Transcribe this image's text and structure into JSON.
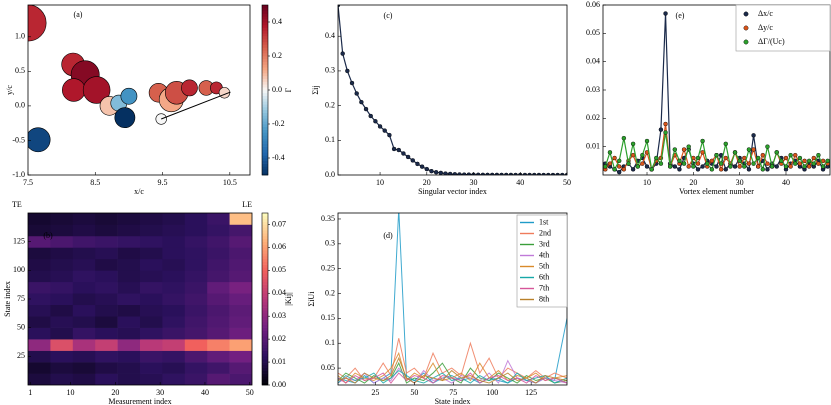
{
  "chart_data": [
    {
      "type": "bubble",
      "panel_label": "(a)",
      "xlabel": "x/c",
      "ylabel": "y/c",
      "xlim": [
        7.5,
        10.8
      ],
      "ylim": [
        -1.0,
        1.46
      ],
      "xticks": [
        7.5,
        8.5,
        9.5,
        10.5
      ],
      "yticks": [
        {
          "value": -1.0,
          "label": "-1.0"
        },
        -0.5,
        {
          "value": 0.0,
          "label": "0.0"
        },
        0.5,
        {
          "value": 1.0,
          "label": "1.0"
        }
      ],
      "x": [
        7.5,
        7.65,
        8.17,
        8.35,
        8.18,
        8.52,
        8.71,
        8.85,
        9.0,
        8.94,
        9.44,
        9.63,
        9.71,
        9.9,
        10.15,
        10.3,
        10.42,
        9.48
      ],
      "y": [
        1.2,
        -0.49,
        0.6,
        0.45,
        0.23,
        0.23,
        0.0,
        0.04,
        0.14,
        -0.17,
        0.19,
        0.09,
        0.19,
        0.26,
        0.26,
        0.26,
        0.19,
        -0.19
      ],
      "radius": [
        0.27,
        0.18,
        0.17,
        0.21,
        0.17,
        0.2,
        0.14,
        0.12,
        0.12,
        0.15,
        0.14,
        0.18,
        0.17,
        0.12,
        0.11,
        0.09,
        0.08,
        0.08
      ],
      "gamma": [
        0.35,
        -0.45,
        0.35,
        0.45,
        0.38,
        0.4,
        0.08,
        -0.15,
        -0.25,
        -0.5,
        0.25,
        0.12,
        0.28,
        0.35,
        0.25,
        0.35,
        0.05,
        0.0
      ],
      "segment": {
        "x": [
          9.48,
          10.51
        ],
        "y": [
          -0.19,
          0.2
        ]
      },
      "colorbar": {
        "label": "Γ",
        "colormap": "RdBu_r",
        "lim": [
          -0.5,
          0.5
        ],
        "ticks": [
          -0.4,
          -0.2,
          {
            "value": 0.0,
            "label": "0.0"
          },
          0.2,
          0.4
        ]
      }
    },
    {
      "type": "heatmap",
      "panel_label": "(b)",
      "xlabel": "Measurement index",
      "ylabel": "State index",
      "annotations": [
        "TE",
        "LE"
      ],
      "xlim": [
        0.5,
        50.5
      ],
      "ylim": [
        0,
        150
      ],
      "xticks": [
        1,
        10,
        20,
        30,
        40,
        50
      ],
      "yticks": [
        25,
        50,
        75,
        100,
        125
      ],
      "values": [
        [
          0.008,
          0.01,
          0.009,
          0.012,
          0.01,
          0.011,
          0.013,
          0.015,
          0.02,
          0.018
        ],
        [
          0.006,
          0.008,
          0.007,
          0.009,
          0.01,
          0.012,
          0.011,
          0.014,
          0.016,
          0.02
        ],
        [
          0.01,
          0.012,
          0.011,
          0.013,
          0.012,
          0.015,
          0.014,
          0.018,
          0.022,
          0.025
        ],
        [
          0.03,
          0.045,
          0.035,
          0.04,
          0.03,
          0.038,
          0.04,
          0.05,
          0.055,
          0.06
        ],
        [
          0.012,
          0.01,
          0.014,
          0.012,
          0.011,
          0.013,
          0.015,
          0.017,
          0.02,
          0.024
        ],
        [
          0.009,
          0.011,
          0.01,
          0.008,
          0.012,
          0.01,
          0.013,
          0.016,
          0.019,
          0.022
        ],
        [
          0.011,
          0.009,
          0.012,
          0.01,
          0.009,
          0.011,
          0.012,
          0.015,
          0.018,
          0.021
        ],
        [
          0.013,
          0.012,
          0.01,
          0.011,
          0.013,
          0.012,
          0.014,
          0.016,
          0.02,
          0.023
        ],
        [
          0.015,
          0.014,
          0.012,
          0.013,
          0.011,
          0.014,
          0.013,
          0.015,
          0.022,
          0.026
        ],
        [
          0.01,
          0.011,
          0.013,
          0.012,
          0.01,
          0.011,
          0.012,
          0.014,
          0.017,
          0.02
        ],
        [
          0.009,
          0.01,
          0.011,
          0.009,
          0.01,
          0.012,
          0.011,
          0.013,
          0.016,
          0.019
        ],
        [
          0.008,
          0.009,
          0.01,
          0.011,
          0.009,
          0.01,
          0.012,
          0.013,
          0.015,
          0.018
        ],
        [
          0.02,
          0.018,
          0.016,
          0.015,
          0.014,
          0.013,
          0.012,
          0.014,
          0.016,
          0.02
        ],
        [
          0.007,
          0.008,
          0.009,
          0.008,
          0.009,
          0.01,
          0.011,
          0.012,
          0.014,
          0.017
        ],
        [
          0.006,
          0.007,
          0.008,
          0.007,
          0.008,
          0.009,
          0.01,
          0.012,
          0.015,
          0.065
        ]
      ],
      "colorbar": {
        "label": "|Kij|",
        "colormap": "magma",
        "lim": [
          0,
          0.075
        ],
        "ticks": [
          {
            "value": 0,
            "label": "0.00"
          },
          0.01,
          0.02,
          0.03,
          0.04,
          0.05,
          0.06,
          0.07
        ]
      }
    },
    {
      "type": "line",
      "panel_label": "(c)",
      "xlabel": "Singular vector index",
      "ylabel": "Σij",
      "markers": true,
      "xlim": [
        1,
        50
      ],
      "ylim": [
        0,
        0.49
      ],
      "xticks": [
        10,
        20,
        30,
        40,
        50
      ],
      "yticks": [
        {
          "value": 0,
          "label": "0.0"
        },
        0.1,
        0.2,
        0.3,
        0.4
      ],
      "x": [
        1,
        2,
        3,
        4,
        5,
        6,
        7,
        8,
        9,
        10,
        11,
        12,
        13,
        14,
        15,
        16,
        17,
        18,
        19,
        20,
        21,
        22,
        23,
        24,
        25,
        26,
        27,
        28,
        29,
        30,
        31,
        32,
        33,
        34,
        35,
        36,
        37,
        38,
        39,
        40,
        41,
        42,
        43,
        44,
        45,
        46,
        47,
        48,
        49,
        50
      ],
      "series": [
        {
          "color": "#1b2a4a",
          "values": [
            0.49,
            0.35,
            0.3,
            0.265,
            0.235,
            0.21,
            0.19,
            0.17,
            0.155,
            0.14,
            0.128,
            0.115,
            0.075,
            0.072,
            0.062,
            0.052,
            0.042,
            0.032,
            0.024,
            0.017,
            0.011,
            0.008,
            0.006,
            0.004,
            0.003,
            0.002,
            0.0015,
            0.001,
            0.001,
            0.0008,
            0.0006,
            0.0005,
            0.0004,
            0.0003,
            0.0003,
            0.0002,
            0.0002,
            0.0002,
            0.0001,
            0.0001,
            0.0001,
            0.0001,
            0.0001,
            0.0001,
            0,
            0,
            0,
            0,
            0,
            0
          ]
        }
      ]
    },
    {
      "type": "line",
      "panel_label": "(d)",
      "xlabel": "State index",
      "ylabel": "ΣiUi",
      "markers": false,
      "legend": "upper right",
      "xlim": [
        1,
        148
      ],
      "ylim": [
        0.016,
        0.362
      ],
      "xticks": [
        25,
        50,
        75,
        100,
        125
      ],
      "yticks": [
        0.05,
        0.1,
        0.15,
        0.2,
        0.25,
        0.3,
        0.35
      ],
      "x": [
        1,
        6,
        12,
        18,
        24,
        30,
        35,
        40,
        45,
        50,
        56,
        62,
        68,
        74,
        80,
        86,
        92,
        98,
        104,
        110,
        116,
        122,
        128,
        134,
        140,
        148
      ],
      "series": [
        {
          "name": "1st",
          "color": "#1f9bc8",
          "values": [
            0.03,
            0.025,
            0.02,
            0.035,
            0.02,
            0.03,
            0.04,
            0.37,
            0.03,
            0.025,
            0.04,
            0.02,
            0.03,
            0.035,
            0.025,
            0.03,
            0.02,
            0.03,
            0.025,
            0.02,
            0.03,
            0.025,
            0.02,
            0.03,
            0.025,
            0.15
          ]
        },
        {
          "name": "2nd",
          "color": "#ef7b5c",
          "values": [
            0.04,
            0.03,
            0.05,
            0.025,
            0.03,
            0.06,
            0.035,
            0.11,
            0.04,
            0.05,
            0.03,
            0.08,
            0.04,
            0.05,
            0.035,
            0.1,
            0.04,
            0.07,
            0.03,
            0.05,
            0.04,
            0.03,
            0.045,
            0.03,
            0.04,
            0.03
          ]
        },
        {
          "name": "3rd",
          "color": "#3a9e3a",
          "values": [
            0.025,
            0.04,
            0.03,
            0.02,
            0.035,
            0.025,
            0.03,
            0.06,
            0.02,
            0.03,
            0.025,
            0.04,
            0.06,
            0.03,
            0.02,
            0.05,
            0.03,
            0.025,
            0.04,
            0.03,
            0.02,
            0.035,
            0.025,
            0.03,
            0.02,
            0.025
          ]
        },
        {
          "name": "4th",
          "color": "#c07ad8",
          "values": [
            0.02,
            0.03,
            0.025,
            0.04,
            0.02,
            0.03,
            0.025,
            0.05,
            0.03,
            0.02,
            0.045,
            0.025,
            0.03,
            0.02,
            0.035,
            0.03,
            0.025,
            0.04,
            0.02,
            0.065,
            0.03,
            0.025,
            0.02,
            0.03,
            0.025,
            0.02
          ]
        },
        {
          "name": "5th",
          "color": "#d98a2b",
          "values": [
            0.035,
            0.02,
            0.04,
            0.03,
            0.025,
            0.035,
            0.05,
            0.08,
            0.025,
            0.04,
            0.03,
            0.06,
            0.025,
            0.03,
            0.04,
            0.025,
            0.06,
            0.03,
            0.045,
            0.025,
            0.035,
            0.03,
            0.04,
            0.025,
            0.03,
            0.035
          ]
        },
        {
          "name": "6th",
          "color": "#17a8a8",
          "values": [
            0.02,
            0.035,
            0.025,
            0.03,
            0.04,
            0.02,
            0.03,
            0.045,
            0.035,
            0.025,
            0.02,
            0.03,
            0.04,
            0.025,
            0.03,
            0.02,
            0.035,
            0.025,
            0.03,
            0.02,
            0.04,
            0.025,
            0.03,
            0.035,
            0.02,
            0.03
          ]
        },
        {
          "name": "7th",
          "color": "#d6559a",
          "values": [
            0.03,
            0.02,
            0.035,
            0.025,
            0.03,
            0.04,
            0.02,
            0.04,
            0.025,
            0.035,
            0.03,
            0.02,
            0.035,
            0.03,
            0.025,
            0.04,
            0.02,
            0.03,
            0.035,
            0.025,
            0.03,
            0.02,
            0.035,
            0.025,
            0.03,
            0.02
          ]
        },
        {
          "name": "8th",
          "color": "#b9802a",
          "values": [
            0.025,
            0.03,
            0.02,
            0.04,
            0.03,
            0.025,
            0.035,
            0.07,
            0.03,
            0.02,
            0.035,
            0.03,
            0.025,
            0.045,
            0.03,
            0.035,
            0.025,
            0.02,
            0.03,
            0.04,
            0.025,
            0.03,
            0.02,
            0.035,
            0.03,
            0.025
          ]
        }
      ]
    },
    {
      "type": "line",
      "panel_label": "(e)",
      "xlabel": "Vortex element number",
      "markers": true,
      "legend": "upper right",
      "xlim": [
        0.5,
        49.5
      ],
      "ylim": [
        0,
        0.06
      ],
      "xticks": [
        10,
        20,
        30,
        40
      ],
      "yticks": [
        0.01,
        0.02,
        0.03,
        0.04,
        0.05,
        0.06
      ],
      "x": [
        1,
        2,
        3,
        4,
        5,
        6,
        7,
        8,
        9,
        10,
        11,
        12,
        13,
        14,
        15,
        16,
        17,
        18,
        19,
        20,
        21,
        22,
        23,
        24,
        25,
        26,
        27,
        28,
        29,
        30,
        31,
        32,
        33,
        34,
        35,
        36,
        37,
        38,
        39,
        40,
        41,
        42,
        43,
        44,
        45,
        46,
        47,
        48,
        49
      ],
      "series": [
        {
          "name": "Δx/c",
          "color": "#1b2a4a",
          "values": [
            0.004,
            0.003,
            0.002,
            0.001,
            0.003,
            0.004,
            0.002,
            0.005,
            0.006,
            0.003,
            0.002,
            0.004,
            0.016,
            0.057,
            0.004,
            0.003,
            0.002,
            0.006,
            0.009,
            0.004,
            0.002,
            0.003,
            0.005,
            0.004,
            0.003,
            0.007,
            0.002,
            0.004,
            0.003,
            0.006,
            0.004,
            0.002,
            0.014,
            0.003,
            0.005,
            0.002,
            0.004,
            0.003,
            0.006,
            0.002,
            0.004,
            0.005,
            0.003,
            0.002,
            0.004,
            0.003,
            0.005,
            0.002,
            0.003
          ]
        },
        {
          "name": "Δy/c",
          "color": "#d9541a",
          "values": [
            0.002,
            0.004,
            0.006,
            0.003,
            0.002,
            0.005,
            0.007,
            0.003,
            0.004,
            0.008,
            0.002,
            0.005,
            0.006,
            0.018,
            0.003,
            0.007,
            0.004,
            0.009,
            0.003,
            0.006,
            0.004,
            0.008,
            0.003,
            0.005,
            0.007,
            0.002,
            0.006,
            0.004,
            0.008,
            0.003,
            0.006,
            0.004,
            0.009,
            0.003,
            0.007,
            0.004,
            0.003,
            0.008,
            0.004,
            0.006,
            0.003,
            0.007,
            0.004,
            0.005,
            0.003,
            0.006,
            0.004,
            0.005,
            0.004
          ]
        },
        {
          "name": "ΔΓ/(Uc)",
          "color": "#2ca02c",
          "values": [
            0.003,
            0.008,
            0.002,
            0.005,
            0.013,
            0.004,
            0.011,
            0.003,
            0.007,
            0.012,
            0.002,
            0.006,
            0.004,
            0.015,
            0.003,
            0.009,
            0.005,
            0.004,
            0.01,
            0.003,
            0.006,
            0.012,
            0.004,
            0.002,
            0.007,
            0.004,
            0.011,
            0.003,
            0.008,
            0.005,
            0.003,
            0.009,
            0.004,
            0.006,
            0.002,
            0.01,
            0.003,
            0.008,
            0.005,
            0.003,
            0.007,
            0.004,
            0.006,
            0.003,
            0.005,
            0.004,
            0.007,
            0.003,
            0.005
          ]
        }
      ]
    }
  ]
}
